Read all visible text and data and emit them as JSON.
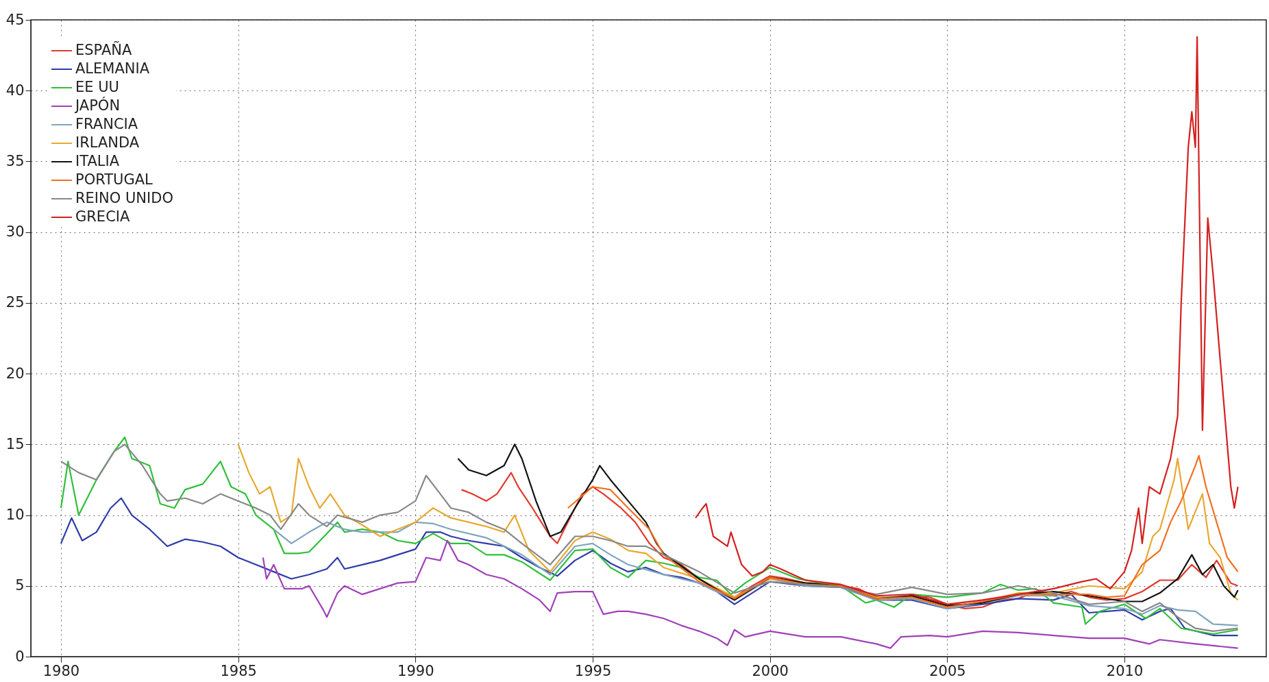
{
  "chart_data": {
    "type": "line",
    "xlim": [
      1979.15,
      2014
    ],
    "ylim": [
      0,
      45
    ],
    "xticks": [
      1980,
      1985,
      1990,
      1995,
      2000,
      2005,
      2010
    ],
    "yticks": [
      0,
      5,
      10,
      15,
      20,
      25,
      30,
      35,
      40,
      45
    ],
    "grid": true,
    "legend": "top left",
    "line_style": "solid",
    "series": [
      {
        "name": "ESPAÑA",
        "color": "#e03a2e",
        "x": [
          1991.3,
          1991.6,
          1992.0,
          1992.3,
          1992.7,
          1992.9,
          1993.3,
          1993.8,
          1994.0,
          1994.3,
          1994.7,
          1995.0,
          1995.3,
          1995.8,
          1996.2,
          1996.6,
          1997.0,
          1997.5,
          1998.0,
          1998.5,
          1999.0,
          1999.5,
          2000.0,
          2000.5,
          2001.0,
          2001.5,
          2002.0,
          2002.5,
          2003.0,
          2003.5,
          2004.0,
          2004.5,
          2005.0,
          2005.5,
          2006.0,
          2006.5,
          2007.0,
          2007.5,
          2008.0,
          2008.5,
          2009.0,
          2009.5,
          2010.0,
          2010.5,
          2011.0,
          2011.5,
          2011.9,
          2012.3,
          2012.6,
          2013.0,
          2013.2
        ],
        "values": [
          11.8,
          11.5,
          11.0,
          11.5,
          13.0,
          12.0,
          10.5,
          8.5,
          8.0,
          9.5,
          11.5,
          12.0,
          11.5,
          10.5,
          9.5,
          8.0,
          7.0,
          6.5,
          5.5,
          4.8,
          4.2,
          5.0,
          5.7,
          5.5,
          5.2,
          5.2,
          5.0,
          4.8,
          4.2,
          4.0,
          4.3,
          4.2,
          3.7,
          3.4,
          3.5,
          4.0,
          4.1,
          4.6,
          4.3,
          4.6,
          4.2,
          4.0,
          4.1,
          4.6,
          5.4,
          5.4,
          6.5,
          5.6,
          6.8,
          5.2,
          5.0
        ]
      },
      {
        "name": "ALEMANIA",
        "color": "#2e3ca8",
        "x": [
          1980.0,
          1980.3,
          1980.6,
          1981.0,
          1981.4,
          1981.7,
          1982.0,
          1982.5,
          1983.0,
          1983.5,
          1984.0,
          1984.5,
          1985.0,
          1985.5,
          1986.0,
          1986.5,
          1987.0,
          1987.5,
          1987.8,
          1988.0,
          1988.5,
          1989.0,
          1989.5,
          1990.0,
          1990.3,
          1990.7,
          1991.0,
          1991.5,
          1992.0,
          1992.5,
          1993.0,
          1993.5,
          1994.0,
          1994.5,
          1995.0,
          1995.5,
          1996.0,
          1996.5,
          1997.0,
          1997.5,
          1998.0,
          1998.5,
          1999.0,
          1999.5,
          2000,
          2001,
          2002,
          2003,
          2004,
          2005,
          2006,
          2007,
          2008,
          2008.5,
          2009,
          2010,
          2010.5,
          2011,
          2011.3,
          2011.7,
          2012.5,
          2013.2
        ],
        "values": [
          8.0,
          9.8,
          8.2,
          8.8,
          10.5,
          11.2,
          10.0,
          9.0,
          7.8,
          8.3,
          8.1,
          7.8,
          7.0,
          6.5,
          6.0,
          5.5,
          5.8,
          6.2,
          7.0,
          6.2,
          6.5,
          6.8,
          7.2,
          7.6,
          8.8,
          8.8,
          8.5,
          8.2,
          8.0,
          7.8,
          7.0,
          6.3,
          5.7,
          6.8,
          7.5,
          6.6,
          6.0,
          6.3,
          5.8,
          5.6,
          5.2,
          4.6,
          3.7,
          4.5,
          5.3,
          5.0,
          4.9,
          4.0,
          4.0,
          3.4,
          3.7,
          4.1,
          4.0,
          4.4,
          3.1,
          3.3,
          2.6,
          3.2,
          3.4,
          2.0,
          1.5,
          1.5
        ]
      },
      {
        "name": "EE UU",
        "color": "#2fbf3a",
        "x": [
          1980.0,
          1980.2,
          1980.5,
          1981.0,
          1981.5,
          1981.8,
          1982.0,
          1982.5,
          1982.8,
          1983.2,
          1983.5,
          1984.0,
          1984.5,
          1984.8,
          1985.2,
          1985.5,
          1986.0,
          1986.3,
          1986.7,
          1987.0,
          1987.5,
          1987.8,
          1988.0,
          1988.5,
          1989.0,
          1989.5,
          1990.0,
          1990.5,
          1991.0,
          1991.5,
          1992.0,
          1992.5,
          1993.0,
          1993.8,
          1994.5,
          1995.0,
          1995.5,
          1996.0,
          1996.5,
          1997.0,
          1997.5,
          1998.0,
          1998.5,
          1998.9,
          1999.3,
          2000.0,
          2000.8,
          2001.5,
          2002.0,
          2002.7,
          2003.0,
          2003.5,
          2004,
          2005,
          2006,
          2006.5,
          2007,
          2007.5,
          2008.0,
          2008.8,
          2008.9,
          2009.3,
          2010,
          2010.6,
          2011,
          2011.6,
          2012.5,
          2013.2
        ],
        "values": [
          10.5,
          13.8,
          10.0,
          12.5,
          14.5,
          15.5,
          14.0,
          13.5,
          10.8,
          10.5,
          11.8,
          12.2,
          13.8,
          12.0,
          11.5,
          10.0,
          9.0,
          7.3,
          7.3,
          7.4,
          8.7,
          9.5,
          8.8,
          9.0,
          8.8,
          8.2,
          8.0,
          8.7,
          8.0,
          8.0,
          7.2,
          7.2,
          6.7,
          5.4,
          7.5,
          7.6,
          6.3,
          5.6,
          6.8,
          6.6,
          6.3,
          5.6,
          5.4,
          4.4,
          5.2,
          6.3,
          5.5,
          5.2,
          5.0,
          3.8,
          4.0,
          3.5,
          4.4,
          4.2,
          4.5,
          5.1,
          4.7,
          4.8,
          3.8,
          3.5,
          2.3,
          3.2,
          3.7,
          2.7,
          3.4,
          2.0,
          1.6,
          1.9
        ]
      },
      {
        "name": "JAPÓN",
        "color": "#a040b8",
        "x": [
          1985.7,
          1985.8,
          1986.0,
          1986.3,
          1986.8,
          1987.0,
          1987.4,
          1987.5,
          1987.8,
          1988.0,
          1988.5,
          1989.0,
          1989.5,
          1990.0,
          1990.3,
          1990.7,
          1990.9,
          1991.2,
          1991.5,
          1992.0,
          1992.5,
          1993.0,
          1993.5,
          1993.8,
          1994.0,
          1994.5,
          1995.0,
          1995.3,
          1995.7,
          1996.0,
          1996.5,
          1997.0,
          1997.5,
          1998.0,
          1998.5,
          1998.8,
          1999.0,
          1999.3,
          2000,
          2001,
          2002,
          2003.0,
          2003.4,
          2003.7,
          2004.5,
          2005,
          2006,
          2007,
          2008,
          2009,
          2010,
          2010.7,
          2011,
          2012,
          2013.2
        ],
        "values": [
          7.0,
          5.5,
          6.5,
          4.8,
          4.8,
          5.0,
          3.3,
          2.8,
          4.5,
          5.0,
          4.4,
          4.8,
          5.2,
          5.3,
          7.0,
          6.8,
          8.2,
          6.8,
          6.5,
          5.8,
          5.5,
          4.8,
          4.0,
          3.2,
          4.5,
          4.6,
          4.6,
          3.0,
          3.2,
          3.2,
          3.0,
          2.7,
          2.2,
          1.8,
          1.3,
          0.8,
          1.9,
          1.4,
          1.8,
          1.4,
          1.4,
          0.9,
          0.6,
          1.4,
          1.5,
          1.4,
          1.8,
          1.7,
          1.5,
          1.3,
          1.3,
          0.9,
          1.2,
          0.9,
          0.6
        ]
      },
      {
        "name": "FRANCIA",
        "color": "#7fa4bf",
        "x": [
          1986.0,
          1986.5,
          1987.0,
          1987.5,
          1988,
          1988.5,
          1989.0,
          1989.5,
          1990.0,
          1990.5,
          1991,
          1992,
          1993,
          1993.8,
          1994.5,
          1995.0,
          1995.5,
          1996,
          1997,
          1998,
          1999,
          2000,
          2001,
          2002,
          2003,
          2004,
          2005,
          2006,
          2007,
          2008,
          2009,
          2010,
          2010.5,
          2011,
          2011.5,
          2012.0,
          2012.5,
          2013.2
        ],
        "values": [
          9.0,
          8.0,
          8.8,
          9.5,
          9.0,
          8.8,
          8.8,
          8.8,
          9.5,
          9.4,
          9.0,
          8.4,
          7.2,
          5.8,
          7.8,
          8.0,
          7.2,
          6.5,
          5.8,
          5.2,
          4.0,
          5.5,
          5.0,
          4.9,
          4.0,
          4.1,
          3.4,
          3.8,
          4.3,
          4.3,
          3.6,
          3.4,
          3.0,
          3.6,
          3.3,
          3.2,
          2.3,
          2.2
        ]
      },
      {
        "name": "IRLANDA",
        "color": "#e8a830",
        "x": [
          1985.0,
          1985.3,
          1985.6,
          1985.9,
          1986.2,
          1986.5,
          1986.7,
          1987.0,
          1987.3,
          1987.6,
          1988.0,
          1988.5,
          1989,
          1989.5,
          1990.0,
          1990.5,
          1991,
          1992,
          1992.5,
          1992.8,
          1993.2,
          1993.8,
          1994.5,
          1995.0,
          1995.5,
          1996,
          1996.5,
          1997,
          1998,
          1999,
          2000,
          2001,
          2002,
          2003,
          2004,
          2005,
          2006,
          2007,
          2008,
          2009,
          2010.0,
          2010.5,
          2010.8,
          2011.0,
          2011.4,
          2011.5,
          2011.8,
          2012.2,
          2012.4,
          2012.7,
          2013.0,
          2013.2
        ],
        "values": [
          15.0,
          13.0,
          11.5,
          12.0,
          9.5,
          10.0,
          14.0,
          12.0,
          10.5,
          11.5,
          10.0,
          9.3,
          8.5,
          9.0,
          9.5,
          10.5,
          9.8,
          9.2,
          8.8,
          10.0,
          7.5,
          6.0,
          8.2,
          8.8,
          8.3,
          7.5,
          7.3,
          6.3,
          5.5,
          4.2,
          5.5,
          5.2,
          5.0,
          4.2,
          4.2,
          3.5,
          3.9,
          4.5,
          4.5,
          5.0,
          4.8,
          6.0,
          8.5,
          9.0,
          12.5,
          14.0,
          9.0,
          11.5,
          8.0,
          7.0,
          4.5,
          4.0
        ]
      },
      {
        "name": "ITALIA",
        "color": "#111111",
        "x": [
          1991.2,
          1991.5,
          1992.0,
          1992.5,
          1992.8,
          1993.0,
          1993.4,
          1993.8,
          1994.1,
          1994.5,
          1995.0,
          1995.2,
          1995.5,
          1996.0,
          1996.5,
          1996.8,
          1997,
          1998,
          1999,
          2000,
          2001,
          2002,
          2003,
          2004,
          2005,
          2006,
          2007,
          2008,
          2009,
          2010,
          2010.5,
          2011.0,
          2011.5,
          2011.9,
          2012.2,
          2012.5,
          2012.8,
          2013.1,
          2013.2
        ],
        "values": [
          14.0,
          13.2,
          12.8,
          13.5,
          15.0,
          14.0,
          11.0,
          8.5,
          8.8,
          10.5,
          12.5,
          13.5,
          12.5,
          11.0,
          9.5,
          8.0,
          7.3,
          5.5,
          4.0,
          5.6,
          5.2,
          5.0,
          4.1,
          4.3,
          3.6,
          3.8,
          4.4,
          4.6,
          4.3,
          3.9,
          3.9,
          4.5,
          5.5,
          7.2,
          5.8,
          6.5,
          5.0,
          4.2,
          4.7
        ]
      },
      {
        "name": "PORTUGAL",
        "color": "#f07020",
        "x": [
          1994.3,
          1995.0,
          1995.5,
          1996,
          1996.6,
          1997,
          1998,
          1999,
          2000,
          2001,
          2002,
          2003,
          2004,
          2005,
          2006,
          2007,
          2008,
          2009,
          2009.5,
          2010.0,
          2010.5,
          2011.0,
          2011.3,
          2011.6,
          2012.0,
          2012.1,
          2012.3,
          2012.6,
          2012.9,
          2013.2
        ],
        "values": [
          10.5,
          12.0,
          11.8,
          10.5,
          9.0,
          7.2,
          5.3,
          4.1,
          5.6,
          5.1,
          5.0,
          4.1,
          4.2,
          3.5,
          3.9,
          4.4,
          4.4,
          4.4,
          4.2,
          4.3,
          6.5,
          7.5,
          9.5,
          11.0,
          13.5,
          14.2,
          12.0,
          9.5,
          7.0,
          6.0
        ]
      },
      {
        "name": "REINO UNIDO",
        "color": "#888888",
        "x": [
          1980.0,
          1980.5,
          1981.0,
          1981.5,
          1981.8,
          1982.3,
          1982.8,
          1983.0,
          1983.5,
          1984.0,
          1984.5,
          1985.0,
          1985.5,
          1985.9,
          1986.2,
          1986.7,
          1987.0,
          1987.5,
          1987.8,
          1988.5,
          1989,
          1989.5,
          1990.0,
          1990.3,
          1990.7,
          1991.0,
          1991.5,
          1992,
          1992.5,
          1993,
          1993.8,
          1994.5,
          1995,
          1995.5,
          1996,
          1996.5,
          1997,
          1998,
          1999,
          2000,
          2001,
          2002,
          2003,
          2004,
          2005,
          2006,
          2007,
          2008,
          2009,
          2010,
          2010.5,
          2011,
          2011.5,
          2012,
          2012.5,
          2013.2
        ],
        "values": [
          13.8,
          13.0,
          12.5,
          14.5,
          15.0,
          13.5,
          11.5,
          11.0,
          11.2,
          10.8,
          11.5,
          11.0,
          10.5,
          10.0,
          9.0,
          10.8,
          10.0,
          9.2,
          10.0,
          9.5,
          10.0,
          10.2,
          11.0,
          12.8,
          11.5,
          10.5,
          10.2,
          9.5,
          9.0,
          8.0,
          6.5,
          8.5,
          8.5,
          8.2,
          7.8,
          7.8,
          7.2,
          6.0,
          4.5,
          5.3,
          5.1,
          4.9,
          4.4,
          4.9,
          4.4,
          4.5,
          5.0,
          4.5,
          3.7,
          3.9,
          3.2,
          3.8,
          2.8,
          2.0,
          1.8,
          2.0
        ]
      },
      {
        "name": "GRECIA",
        "color": "#d42020",
        "x": [
          1997.9,
          1998.1,
          1998.2,
          1998.4,
          1998.8,
          1998.9,
          1999.2,
          1999.5,
          1999.8,
          2000.0,
          2000.3,
          2001,
          2002,
          2003,
          2004,
          2005,
          2006,
          2007,
          2008,
          2008.8,
          2009.2,
          2009.6,
          2010.0,
          2010.2,
          2010.4,
          2010.5,
          2010.7,
          2011.0,
          2011.3,
          2011.5,
          2011.6,
          2011.8,
          2011.9,
          2012.0,
          2012.05,
          2012.2,
          2012.35,
          2012.5,
          2012.7,
          2012.9,
          2013.0,
          2013.1,
          2013.2
        ],
        "values": [
          9.8,
          10.5,
          10.8,
          8.5,
          7.8,
          8.8,
          6.5,
          5.7,
          6.0,
          6.5,
          6.2,
          5.4,
          5.1,
          4.3,
          4.4,
          3.7,
          4.0,
          4.4,
          4.8,
          5.3,
          5.5,
          4.8,
          6.0,
          7.5,
          10.5,
          8.0,
          12.0,
          11.5,
          14.0,
          17.0,
          25.0,
          36.0,
          38.5,
          36.0,
          43.8,
          16.0,
          31.0,
          27.0,
          21.0,
          15.0,
          12.0,
          10.5,
          12.0
        ]
      }
    ]
  }
}
